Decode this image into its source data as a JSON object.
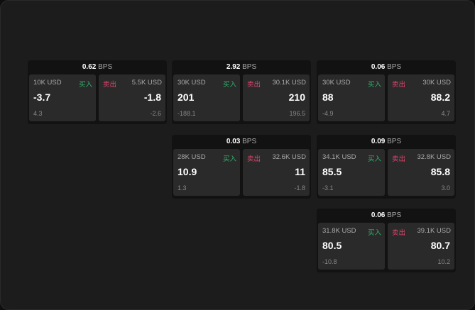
{
  "unit": "BPS",
  "buy_label": "买入",
  "sell_label": "卖出",
  "colors": {
    "buy": "#2fb36a",
    "sell": "#e0456d"
  },
  "cards": [
    {
      "spread": "0.62",
      "buy": {
        "size": "10K USD",
        "price": "-3.7",
        "change": "4.3"
      },
      "sell": {
        "size": "5.5K USD",
        "price": "-1.8",
        "change": "-2.6"
      }
    },
    {
      "spread": "2.92",
      "buy": {
        "size": "30K USD",
        "price": "201",
        "change": "-188.1"
      },
      "sell": {
        "size": "30.1K USD",
        "price": "210",
        "change": "196.5"
      }
    },
    {
      "spread": "0.06",
      "buy": {
        "size": "30K USD",
        "price": "88",
        "change": "-4.9"
      },
      "sell": {
        "size": "30K USD",
        "price": "88.2",
        "change": "4.7"
      }
    },
    {
      "spread": "0.03",
      "buy": {
        "size": "28K USD",
        "price": "10.9",
        "change": "1.3"
      },
      "sell": {
        "size": "32.6K USD",
        "price": "11",
        "change": "-1.8"
      }
    },
    {
      "spread": "0.09",
      "buy": {
        "size": "34.1K USD",
        "price": "85.5",
        "change": "-3.1"
      },
      "sell": {
        "size": "32.8K USD",
        "price": "85.8",
        "change": "3.0"
      }
    },
    {
      "spread": "0.06",
      "buy": {
        "size": "31.8K USD",
        "price": "80.5",
        "change": "-10.8"
      },
      "sell": {
        "size": "39.1K USD",
        "price": "80.7",
        "change": "10.2"
      }
    }
  ]
}
